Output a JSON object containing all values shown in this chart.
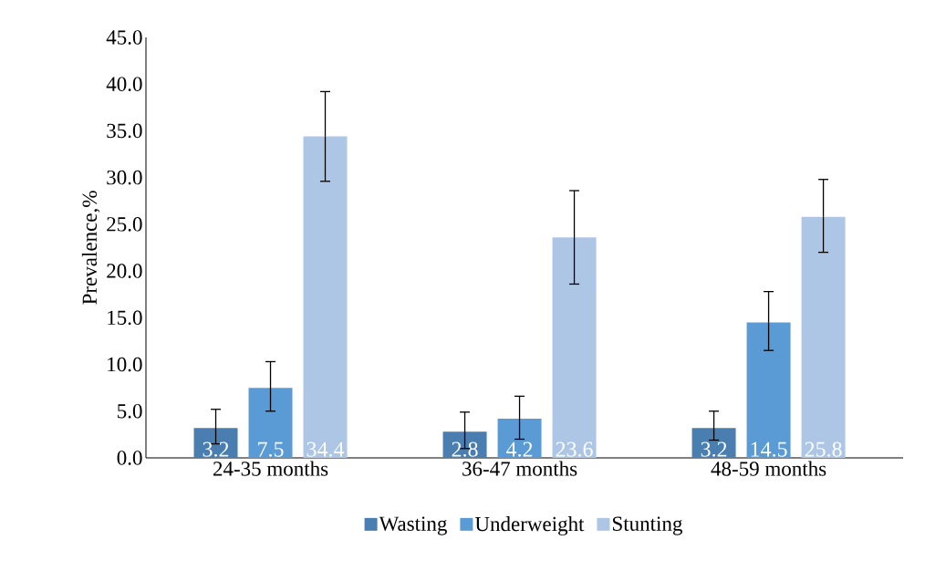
{
  "chart_data": {
    "type": "bar",
    "ylabel": "Prevalence,%",
    "categories": [
      "24-35 months",
      "36-47 months",
      "48-59 months"
    ],
    "series": [
      {
        "name": "Wasting",
        "color": "#4a7eb0",
        "values": [
          3.2,
          2.8,
          3.2
        ],
        "errors": [
          [
            1.5,
            5.2
          ],
          [
            1.0,
            4.9
          ],
          [
            1.9,
            5.0
          ]
        ]
      },
      {
        "name": "Underweight",
        "color": "#5b9bd5",
        "values": [
          7.5,
          4.2,
          14.5
        ],
        "errors": [
          [
            5.0,
            10.3
          ],
          [
            2.0,
            6.6
          ],
          [
            11.5,
            17.8
          ]
        ]
      },
      {
        "name": "Stunting",
        "color": "#adc6e5",
        "values": [
          34.4,
          23.6,
          25.8
        ],
        "errors": [
          [
            29.6,
            39.2
          ],
          [
            18.6,
            28.6
          ],
          [
            22.0,
            29.8
          ]
        ]
      }
    ],
    "ylim": [
      0,
      45
    ],
    "yticks": [
      {
        "value": 0,
        "label": "0.0"
      },
      {
        "value": 5,
        "label": "5.0"
      },
      {
        "value": 10,
        "label": "10.0"
      },
      {
        "value": 15,
        "label": "15.0"
      },
      {
        "value": 20,
        "label": "20.0"
      },
      {
        "value": 25,
        "label": "25.0"
      },
      {
        "value": 30,
        "label": "30.0"
      },
      {
        "value": 35,
        "label": "35.0"
      },
      {
        "value": 40,
        "label": "40.0"
      },
      {
        "value": 45,
        "label": "45.0"
      }
    ],
    "data_labels": true,
    "grid": false,
    "legend": "bottom"
  }
}
